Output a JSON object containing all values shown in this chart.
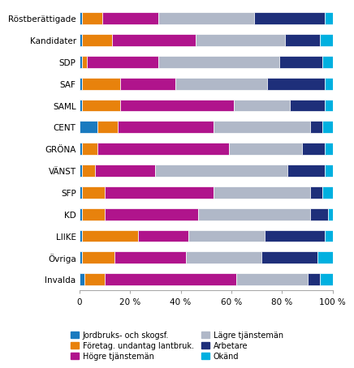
{
  "categories": [
    "Röstberättigade",
    "Kandidater",
    "SDP",
    "SAF",
    "SAML",
    "CENT",
    "GRÖNA",
    "VÄNST",
    "SFP",
    "KD",
    "LIIKE",
    "Övriga",
    "Invalda"
  ],
  "segments": {
    "Jordbruks- och skogsf.": [
      1,
      1,
      1,
      1,
      1,
      7,
      1,
      1,
      1,
      1,
      1,
      1,
      2
    ],
    "Företag. undantag lantbruk.": [
      8,
      12,
      2,
      15,
      15,
      8,
      6,
      5,
      9,
      9,
      22,
      13,
      8
    ],
    "Högre tjänstemän": [
      22,
      33,
      28,
      22,
      45,
      38,
      52,
      24,
      43,
      37,
      20,
      28,
      52
    ],
    "Lägre tjänstemän": [
      38,
      35,
      48,
      36,
      22,
      38,
      29,
      52,
      38,
      44,
      30,
      30,
      28
    ],
    "Arbetare": [
      28,
      14,
      17,
      23,
      14,
      5,
      9,
      15,
      5,
      7,
      24,
      22,
      5
    ],
    "Okänd": [
      3,
      5,
      4,
      3,
      3,
      4,
      3,
      3,
      4,
      2,
      3,
      6,
      5
    ]
  },
  "colors": {
    "Jordbruks- och skogsf.": "#1a7abf",
    "Företag. undantag lantbruk.": "#e8820c",
    "Högre tjänstemän": "#b0148c",
    "Lägre tjänstemän": "#b0b8c8",
    "Arbetare": "#1e2f7a",
    "Okänd": "#00b0e0"
  },
  "legend_order_col1": [
    "Jordbruks- och skogsf.",
    "Högre tjänstemän",
    "Arbetare"
  ],
  "legend_order_col2": [
    "Företag. undantag lantbruk.",
    "Lägre tjänstemän",
    "Okänd"
  ],
  "draw_order": [
    "Jordbruks- och skogsf.",
    "Företag. undantag lantbruk.",
    "Högre tjänstemän",
    "Lägre tjänstemän",
    "Arbetare",
    "Okänd"
  ],
  "xlim": [
    0,
    100
  ],
  "xticks": [
    0,
    20,
    40,
    60,
    80,
    100
  ],
  "xticklabels": [
    "0",
    "20 %",
    "40 %",
    "60 %",
    "80 %",
    "100 %"
  ],
  "background_color": "#ffffff",
  "bar_height": 0.55
}
